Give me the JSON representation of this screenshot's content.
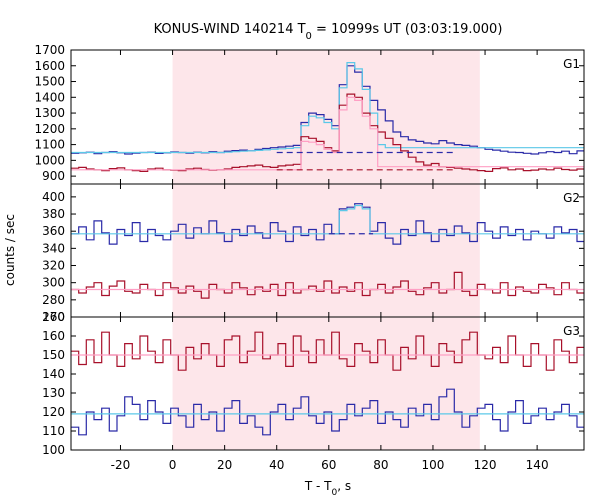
{
  "chart_data": {
    "type": "line",
    "title": "KONUS-WIND 140214 T",
    "title_sub": "0",
    "title_rest": " = 10999s UT (03:03:19.000)",
    "xlabel": "T - T",
    "xlabel_sub": "0",
    "xlabel_unit": ", s",
    "ylabel": "counts / sec",
    "xlim": [
      -39,
      158
    ],
    "x_ticks": [
      -20,
      0,
      20,
      40,
      60,
      80,
      100,
      120,
      140
    ],
    "highlight": {
      "x0": 0,
      "x1": 118,
      "color": "#fde6ea"
    },
    "colors": {
      "blue": "#2a2aa8",
      "red": "#a8102a",
      "cyan": "#5bc8e8",
      "pink": "#ff9fc4"
    },
    "panels": [
      {
        "label": "G1",
        "ylim": [
          850,
          1700
        ],
        "y_ticks": [
          900,
          1000,
          1100,
          1200,
          1300,
          1400,
          1500,
          1600,
          1700
        ],
        "blue_bg": 1050,
        "red_bg": 940,
        "interval": [
          44,
          92
        ],
        "series": [
          {
            "name": "blue",
            "step": 2.944,
            "x0": -39,
            "values": [
              1045,
              1048,
              1052,
              1042,
              1050,
              1055,
              1048,
              1040,
              1046,
              1050,
              1052,
              1044,
              1048,
              1053,
              1050,
              1046,
              1052,
              1048,
              1055,
              1050,
              1058,
              1062,
              1065,
              1060,
              1070,
              1075,
              1080,
              1085,
              1090,
              1095,
              1240,
              1300,
              1290,
              1260,
              1220,
              1480,
              1600,
              1560,
              1470,
              1380,
              1320,
              1250,
              1180,
              1150,
              1130,
              1120,
              1110,
              1105,
              1125,
              1110,
              1100,
              1095,
              1090,
              1080,
              1070,
              1065,
              1058,
              1052,
              1050,
              1045,
              1040,
              1048,
              1055,
              1050,
              1058,
              1042,
              1060,
              1055,
              1065,
              1050
            ]
          },
          {
            "name": "cyan",
            "step": 2.944,
            "x0": -39,
            "values": [
              1050,
              1050,
              1050,
              1050,
              1050,
              1050,
              1050,
              1050,
              1050,
              1050,
              1050,
              1050,
              1050,
              1050,
              1050,
              1050,
              1050,
              1050,
              1050,
              1050,
              1052,
              1055,
              1058,
              1060,
              1063,
              1066,
              1070,
              1073,
              1076,
              1080,
              1220,
              1280,
              1270,
              1240,
              1200,
              1460,
              1620,
              1580,
              1450,
              1300,
              1100,
              1080,
              1080,
              1080,
              1080,
              1080,
              1080,
              1080,
              1080,
              1080,
              1080,
              1080,
              1080,
              1080,
              1080,
              1080,
              1080,
              1080,
              1080,
              1080,
              1080,
              1080,
              1080,
              1080,
              1080,
              1080,
              1080,
              1080,
              1080,
              1080
            ]
          },
          {
            "name": "red",
            "step": 2.944,
            "x0": -39,
            "values": [
              950,
              955,
              945,
              940,
              935,
              948,
              952,
              940,
              935,
              930,
              945,
              950,
              940,
              938,
              935,
              945,
              950,
              942,
              938,
              940,
              945,
              955,
              960,
              965,
              970,
              960,
              955,
              965,
              970,
              975,
              1150,
              1140,
              1120,
              1080,
              1060,
              1350,
              1420,
              1400,
              1300,
              1220,
              1180,
              1140,
              1100,
              1060,
              1020,
              990,
              970,
              980,
              960,
              955,
              950,
              945,
              940,
              935,
              930,
              948,
              952,
              940,
              945,
              935,
              938,
              945,
              940,
              950,
              942,
              938,
              945,
              940,
              948,
              945
            ]
          },
          {
            "name": "pink",
            "step": 2.944,
            "x0": -39,
            "values": [
              940,
              940,
              940,
              940,
              940,
              940,
              940,
              940,
              940,
              940,
              940,
              940,
              940,
              940,
              940,
              940,
              940,
              940,
              940,
              940,
              940,
              940,
              940,
              940,
              940,
              940,
              940,
              940,
              940,
              940,
              1120,
              1115,
              1100,
              1070,
              1050,
              1320,
              1400,
              1380,
              1280,
              1200,
              960,
              960,
              960,
              960,
              960,
              960,
              960,
              960,
              960,
              960,
              960,
              960,
              960,
              960,
              960,
              960,
              960,
              960,
              960,
              960,
              960,
              960,
              960,
              960,
              960,
              960,
              960,
              960,
              960,
              960
            ]
          }
        ]
      },
      {
        "label": "G2",
        "ylim": [
          260,
          415
        ],
        "y_ticks": [
          260,
          280,
          300,
          320,
          340,
          360,
          380,
          400
        ],
        "blue_bg": 357,
        "red_bg": 292,
        "interval": [
          64,
          77
        ],
        "series": [
          {
            "name": "blue",
            "step": 2.944,
            "x0": -39,
            "values": [
              357,
              365,
              350,
              372,
              358,
              345,
              362,
              355,
              370,
              348,
              362,
              355,
              350,
              360,
              368,
              352,
              364,
              357,
              372,
              358,
              348,
              362,
              355,
              366,
              358,
              352,
              370,
              360,
              348,
              365,
              355,
              362,
              350,
              368,
              357,
              386,
              388,
              392,
              388,
              360,
              370,
              352,
              345,
              362,
              355,
              372,
              358,
              348,
              362,
              355,
              366,
              358,
              348,
              370,
              360,
              352,
              365,
              355,
              362,
              350,
              360,
              357,
              352,
              365,
              358,
              362,
              348,
              360,
              352,
              358
            ]
          },
          {
            "name": "cyan",
            "step": 2.944,
            "x0": -39,
            "values": [
              357,
              357,
              357,
              357,
              357,
              357,
              357,
              357,
              357,
              357,
              357,
              357,
              357,
              357,
              357,
              357,
              357,
              357,
              357,
              357,
              357,
              357,
              357,
              357,
              357,
              357,
              357,
              357,
              357,
              357,
              357,
              357,
              357,
              357,
              357,
              384,
              386,
              390,
              386,
              357,
              357,
              357,
              357,
              357,
              357,
              357,
              357,
              357,
              357,
              357,
              357,
              357,
              357,
              357,
              357,
              357,
              357,
              357,
              357,
              357,
              357,
              357,
              357,
              357,
              357,
              357,
              357,
              357,
              357,
              357
            ]
          },
          {
            "name": "red",
            "step": 2.944,
            "x0": -39,
            "values": [
              292,
              288,
              295,
              300,
              285,
              296,
              302,
              290,
              288,
              298,
              292,
              285,
              300,
              294,
              288,
              296,
              290,
              282,
              298,
              292,
              288,
              300,
              294,
              286,
              295,
              290,
              298,
              285,
              300,
              288,
              292,
              296,
              290,
              302,
              288,
              295,
              290,
              300,
              285,
              292,
              298,
              288,
              295,
              302,
              290,
              286,
              294,
              300,
              288,
              292,
              312,
              290,
              285,
              298,
              292,
              288,
              300,
              285,
              295,
              290,
              288,
              298,
              294,
              286,
              300,
              292,
              288,
              296,
              290,
              294
            ]
          },
          {
            "name": "pink",
            "step": 2.944,
            "x0": -39,
            "values": [
              292,
              292,
              292,
              292,
              292,
              292,
              292,
              292,
              292,
              292,
              292,
              292,
              292,
              292,
              292,
              292,
              292,
              292,
              292,
              292,
              292,
              292,
              292,
              292,
              292,
              292,
              292,
              292,
              292,
              292,
              292,
              292,
              292,
              292,
              292,
              292,
              292,
              292,
              292,
              292,
              292,
              292,
              292,
              292,
              292,
              292,
              292,
              292,
              292,
              292,
              292,
              292,
              292,
              292,
              292,
              292,
              292,
              292,
              292,
              292,
              292,
              292,
              292,
              292,
              292,
              292,
              292,
              292,
              292,
              292
            ]
          }
        ]
      },
      {
        "label": "G3",
        "ylim": [
          100,
          170
        ],
        "y_ticks": [
          100,
          110,
          120,
          130,
          140,
          150,
          160,
          170
        ],
        "blue_bg": 119,
        "red_bg": 150,
        "interval": null,
        "series": [
          {
            "name": "blue",
            "step": 2.944,
            "x0": -39,
            "values": [
              112,
              108,
              120,
              116,
              122,
              110,
              118,
              128,
              124,
              116,
              126,
              120,
              114,
              122,
              118,
              112,
              124,
              116,
              120,
              110,
              122,
              126,
              114,
              118,
              112,
              108,
              120,
              124,
              116,
              122,
              128,
              118,
              114,
              120,
              110,
              116,
              124,
              118,
              122,
              126,
              114,
              120,
              116,
              112,
              122,
              118,
              124,
              116,
              128,
              132,
              120,
              112,
              118,
              122,
              124,
              116,
              110,
              120,
              126,
              114,
              118,
              122,
              116,
              120,
              124,
              118,
              112,
              122,
              116,
              120
            ]
          },
          {
            "name": "cyan",
            "step": 2.944,
            "x0": -39,
            "values": [
              119,
              119,
              119,
              119,
              119,
              119,
              119,
              119,
              119,
              119,
              119,
              119,
              119,
              119,
              119,
              119,
              119,
              119,
              119,
              119,
              119,
              119,
              119,
              119,
              119,
              119,
              119,
              119,
              119,
              119,
              119,
              119,
              119,
              119,
              119,
              119,
              119,
              119,
              119,
              119,
              119,
              119,
              119,
              119,
              119,
              119,
              119,
              119,
              119,
              119,
              119,
              119,
              119,
              119,
              119,
              119,
              119,
              119,
              119,
              119,
              119,
              119,
              119,
              119,
              119,
              119,
              119,
              119,
              119,
              119
            ]
          },
          {
            "name": "red",
            "step": 2.944,
            "x0": -39,
            "values": [
              152,
              145,
              158,
              146,
              162,
              150,
              144,
              156,
              148,
              160,
              152,
              146,
              158,
              150,
              142,
              154,
              148,
              156,
              150,
              144,
              158,
              160,
              146,
              152,
              162,
              148,
              150,
              156,
              144,
              160,
              152,
              146,
              158,
              150,
              162,
              148,
              144,
              156,
              152,
              146,
              158,
              150,
              142,
              154,
              148,
              160,
              150,
              144,
              156,
              152,
              146,
              158,
              162,
              150,
              148,
              154,
              146,
              160,
              150,
              144,
              156,
              150,
              142,
              158,
              152,
              146,
              154,
              148,
              150,
              146
            ]
          },
          {
            "name": "pink",
            "step": 2.944,
            "x0": -39,
            "values": [
              150,
              150,
              150,
              150,
              150,
              150,
              150,
              150,
              150,
              150,
              150,
              150,
              150,
              150,
              150,
              150,
              150,
              150,
              150,
              150,
              150,
              150,
              150,
              150,
              150,
              150,
              150,
              150,
              150,
              150,
              150,
              150,
              150,
              150,
              150,
              150,
              150,
              150,
              150,
              150,
              150,
              150,
              150,
              150,
              150,
              150,
              150,
              150,
              150,
              150,
              150,
              150,
              150,
              150,
              150,
              150,
              150,
              150,
              150,
              150,
              150,
              150,
              150,
              150,
              150,
              150,
              150,
              150,
              150,
              150
            ]
          }
        ]
      }
    ]
  }
}
